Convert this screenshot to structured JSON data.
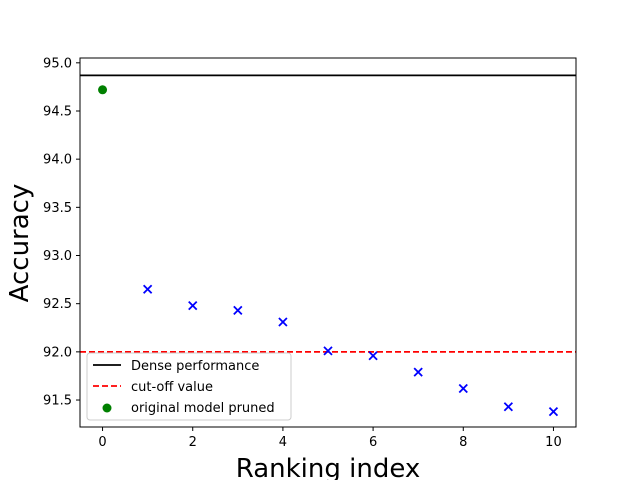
{
  "chart_data": {
    "type": "scatter",
    "xlabel": "Ranking index",
    "ylabel": "Accuracy",
    "xlim": [
      -0.5,
      10.5
    ],
    "ylim": [
      91.22,
      95.05
    ],
    "x_ticks": [
      0,
      2,
      4,
      6,
      8,
      10
    ],
    "y_ticks": [
      91.5,
      92.0,
      92.5,
      93.0,
      93.5,
      94.0,
      94.5,
      95.0
    ],
    "x_tick_labels": [
      "0",
      "2",
      "4",
      "6",
      "8",
      "10"
    ],
    "y_tick_labels": [
      "91.5",
      "92.0",
      "92.5",
      "93.0",
      "93.5",
      "94.0",
      "94.5",
      "95.0"
    ],
    "grid": false,
    "legend_position": "bottom-left",
    "series": [
      {
        "name": "Dense performance",
        "kind": "hline",
        "y": 94.87,
        "color": "#000000",
        "style": "solid"
      },
      {
        "name": "cut-off value",
        "kind": "hline",
        "y": 92.0,
        "color": "#ff0000",
        "style": "dashed"
      },
      {
        "name": "original model pruned",
        "kind": "point",
        "marker": "circle",
        "color": "#008000",
        "points": [
          [
            0,
            94.72
          ]
        ]
      },
      {
        "kind": "point",
        "marker": "x",
        "color": "#0000ff",
        "points": [
          [
            1,
            92.65
          ],
          [
            2,
            92.48
          ],
          [
            3,
            92.43
          ],
          [
            4,
            92.31
          ],
          [
            5,
            92.01
          ],
          [
            6,
            91.96
          ],
          [
            7,
            91.79
          ],
          [
            8,
            91.62
          ],
          [
            9,
            91.43
          ],
          [
            10,
            91.38
          ]
        ]
      }
    ]
  }
}
